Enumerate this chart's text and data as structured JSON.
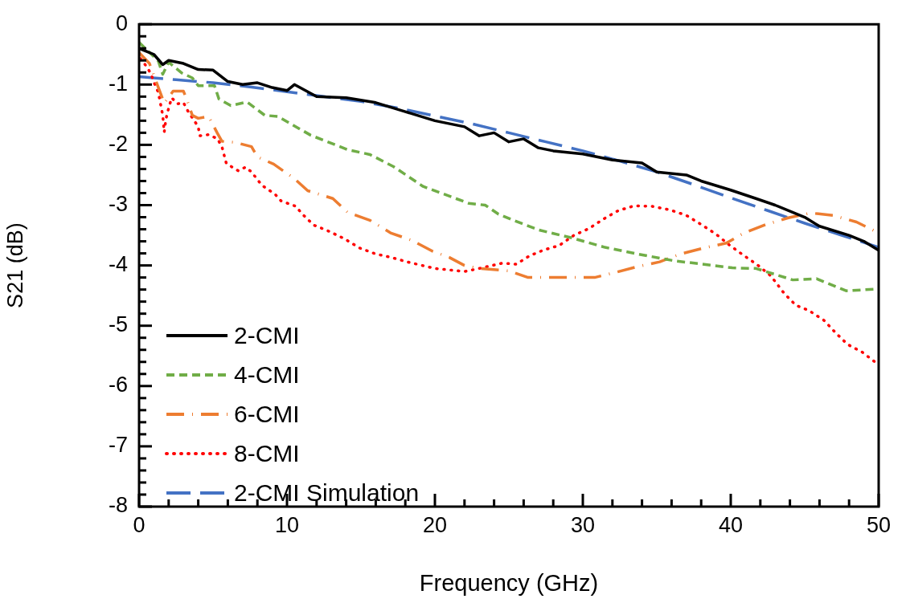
{
  "chart_data": {
    "type": "line",
    "xlabel": "Frequency (GHz)",
    "ylabel": "S21 (dB)",
    "xlim": [
      0,
      50
    ],
    "ylim": [
      -8,
      0
    ],
    "xticks": [
      0,
      {
        "value": 2,
        "label": null
      },
      {
        "value": 4,
        "label": null
      },
      {
        "value": 6,
        "label": null
      },
      {
        "value": 8,
        "label": null
      },
      10,
      {
        "value": 12,
        "label": null
      },
      {
        "value": 14,
        "label": null
      },
      {
        "value": 16,
        "label": null
      },
      {
        "value": 18,
        "label": null
      },
      20,
      {
        "value": 22,
        "label": null
      },
      {
        "value": 24,
        "label": null
      },
      {
        "value": 26,
        "label": null
      },
      {
        "value": 28,
        "label": null
      },
      30,
      {
        "value": 32,
        "label": null
      },
      {
        "value": 34,
        "label": null
      },
      {
        "value": 36,
        "label": null
      },
      {
        "value": 38,
        "label": null
      },
      40,
      {
        "value": 42,
        "label": null
      },
      {
        "value": 44,
        "label": null
      },
      {
        "value": 46,
        "label": null
      },
      {
        "value": 48,
        "label": null
      },
      50
    ],
    "yticks": [
      -8,
      {
        "value": -7.8,
        "label": null
      },
      {
        "value": -7.6,
        "label": null
      },
      {
        "value": -7.4,
        "label": null
      },
      {
        "value": -7.2,
        "label": null
      },
      -7,
      {
        "value": -6.8,
        "label": null
      },
      {
        "value": -6.6,
        "label": null
      },
      {
        "value": -6.4,
        "label": null
      },
      {
        "value": -6.2,
        "label": null
      },
      -6,
      {
        "value": -5.8,
        "label": null
      },
      {
        "value": -5.6,
        "label": null
      },
      {
        "value": -5.4,
        "label": null
      },
      {
        "value": -5.2,
        "label": null
      },
      -5,
      {
        "value": -4.8,
        "label": null
      },
      {
        "value": -4.6,
        "label": null
      },
      {
        "value": -4.4,
        "label": null
      },
      {
        "value": -4.2,
        "label": null
      },
      -4,
      {
        "value": -3.8,
        "label": null
      },
      {
        "value": -3.6,
        "label": null
      },
      {
        "value": -3.4,
        "label": null
      },
      {
        "value": -3.2,
        "label": null
      },
      -3,
      {
        "value": -2.8,
        "label": null
      },
      {
        "value": -2.6,
        "label": null
      },
      {
        "value": -2.4,
        "label": null
      },
      {
        "value": -2.2,
        "label": null
      },
      -2,
      {
        "value": -1.8,
        "label": null
      },
      {
        "value": -1.6,
        "label": null
      },
      {
        "value": -1.4,
        "label": null
      },
      {
        "value": -1.2,
        "label": null
      },
      -1,
      {
        "value": -0.8,
        "label": null
      },
      {
        "value": -0.6,
        "label": null
      },
      {
        "value": -0.4,
        "label": null
      },
      {
        "value": -0.2,
        "label": null
      },
      0
    ],
    "grid": false,
    "legend": "bottom left",
    "marker": "none",
    "series": [
      {
        "name": "2-CMI",
        "color": "#000000",
        "line_style": "solid",
        "x": [
          0,
          1,
          1.6,
          2,
          3,
          4,
          5,
          6,
          7,
          8,
          9,
          10,
          10.5,
          12,
          14,
          16,
          18,
          20,
          22,
          23,
          24,
          25,
          26,
          27,
          28,
          30,
          32,
          34,
          35,
          37,
          38,
          40,
          41.7,
          43,
          45,
          46,
          48,
          49,
          50
        ],
        "values": [
          -0.4,
          -0.5,
          -0.67,
          -0.6,
          -0.65,
          -0.75,
          -0.76,
          -0.95,
          -1.0,
          -0.97,
          -1.05,
          -1.1,
          -1.0,
          -1.2,
          -1.22,
          -1.3,
          -1.45,
          -1.6,
          -1.7,
          -1.85,
          -1.8,
          -1.95,
          -1.9,
          -2.05,
          -2.1,
          -2.15,
          -2.25,
          -2.3,
          -2.45,
          -2.5,
          -2.6,
          -2.75,
          -2.89,
          -3.0,
          -3.2,
          -3.35,
          -3.5,
          -3.6,
          -3.75
        ]
      },
      {
        "name": "4-CMI",
        "color": "#70ad47",
        "line_style": "dashed",
        "x": [
          0,
          1.3,
          1.6,
          2.0,
          2.9,
          3.6,
          4.0,
          5.1,
          5.4,
          6.2,
          7.3,
          8.5,
          9.4,
          11.6,
          14.1,
          15.6,
          17.2,
          19.2,
          22.3,
          23.4,
          24.3,
          25.4,
          27.0,
          29.2,
          31.5,
          33.7,
          36.1,
          38.8,
          40.1,
          41.7,
          44.2,
          45.8,
          47.8,
          50
        ],
        "values": [
          -0.3,
          -0.61,
          -0.83,
          -0.63,
          -0.81,
          -0.89,
          -1.02,
          -1.02,
          -1.24,
          -1.35,
          -1.29,
          -1.51,
          -1.53,
          -1.84,
          -2.08,
          -2.16,
          -2.36,
          -2.69,
          -2.97,
          -3.0,
          -3.15,
          -3.26,
          -3.41,
          -3.54,
          -3.7,
          -3.81,
          -3.92,
          -4.0,
          -4.04,
          -4.05,
          -4.24,
          -4.22,
          -4.42,
          -4.39
        ]
      },
      {
        "name": "6-CMI",
        "color": "#ed7d31",
        "line_style": "dashdot",
        "x": [
          0,
          0.7,
          1.7,
          2.3,
          3.0,
          3.2,
          3.6,
          4.0,
          4.7,
          5.3,
          5.6,
          6.5,
          7.6,
          8,
          9.1,
          10.5,
          11.4,
          13.1,
          14.1,
          15.6,
          17.0,
          18.5,
          19.8,
          21,
          22,
          23,
          25,
          26.3,
          27.7,
          29.2,
          30.8,
          32.3,
          33.7,
          35.2,
          36.6,
          38.2,
          39.7,
          40.9,
          42.4,
          43.9,
          45.4,
          46.9,
          48.5,
          50
        ],
        "values": [
          -0.47,
          -0.65,
          -1.31,
          -1.11,
          -1.11,
          -1.23,
          -1.51,
          -1.56,
          -1.53,
          -1.81,
          -1.94,
          -1.96,
          -2.03,
          -2.2,
          -2.32,
          -2.56,
          -2.76,
          -2.89,
          -3.12,
          -3.25,
          -3.46,
          -3.59,
          -3.76,
          -3.87,
          -4.0,
          -4.05,
          -4.09,
          -4.2,
          -4.2,
          -4.2,
          -4.2,
          -4.11,
          -4.02,
          -3.94,
          -3.81,
          -3.71,
          -3.63,
          -3.46,
          -3.32,
          -3.21,
          -3.13,
          -3.17,
          -3.28,
          -3.46
        ]
      },
      {
        "name": "8-CMI",
        "color": "#ff0000",
        "line_style": "dotted",
        "x": [
          0.1,
          0.5,
          0.8,
          1.0,
          1.3,
          1.6,
          1.7,
          1.8,
          1.9,
          2.2,
          2.6,
          3.0,
          3.3,
          4.0,
          4.1,
          4.7,
          5.3,
          5.6,
          5.9,
          6.7,
          7.2,
          7.6,
          8.3,
          9.2,
          9.6,
          10.6,
          11.0,
          11.8,
          12.8,
          13.9,
          14.9,
          16.0,
          17.1,
          18.1,
          20,
          22,
          23,
          24.6,
          25.5,
          26.4,
          27.4,
          28.4,
          29.4,
          30.4,
          31.4,
          32.4,
          33.5,
          34.7,
          35.9,
          37.0,
          38.0,
          39.0,
          39.9,
          40.8,
          41.8,
          42.7,
          43.6,
          44.4,
          45.3,
          46.3,
          47.1,
          47.9,
          48.9,
          49.8,
          50
        ],
        "values": [
          -0.57,
          -0.7,
          -0.82,
          -0.96,
          -1.13,
          -1.51,
          -1.79,
          -1.6,
          -1.48,
          -1.22,
          -1.32,
          -1.3,
          -1.44,
          -1.7,
          -1.85,
          -1.83,
          -1.9,
          -2.03,
          -2.31,
          -2.43,
          -2.37,
          -2.45,
          -2.67,
          -2.82,
          -2.93,
          -3.02,
          -3.14,
          -3.33,
          -3.43,
          -3.56,
          -3.71,
          -3.81,
          -3.87,
          -3.94,
          -4.05,
          -4.1,
          -4.05,
          -3.96,
          -3.98,
          -3.84,
          -3.74,
          -3.67,
          -3.5,
          -3.39,
          -3.23,
          -3.09,
          -3.01,
          -3.02,
          -3.08,
          -3.17,
          -3.32,
          -3.48,
          -3.66,
          -3.82,
          -3.99,
          -4.17,
          -4.46,
          -4.66,
          -4.75,
          -4.91,
          -5.12,
          -5.31,
          -5.44,
          -5.61,
          -5.64
        ]
      },
      {
        "name": "2-CMI Simulation",
        "color": "#4472c4",
        "line_style": "longdash",
        "x": [
          0,
          2.5,
          5,
          7.5,
          10,
          12.5,
          15,
          17.5,
          20,
          22.5,
          25,
          27.5,
          30,
          32.5,
          35,
          37.5,
          40,
          42.5,
          45,
          47.5,
          50
        ],
        "values": [
          -0.87,
          -0.92,
          -0.97,
          -1.04,
          -1.12,
          -1.2,
          -1.28,
          -1.39,
          -1.52,
          -1.65,
          -1.8,
          -1.95,
          -2.1,
          -2.27,
          -2.45,
          -2.66,
          -2.88,
          -3.09,
          -3.3,
          -3.5,
          -3.7
        ]
      }
    ]
  }
}
